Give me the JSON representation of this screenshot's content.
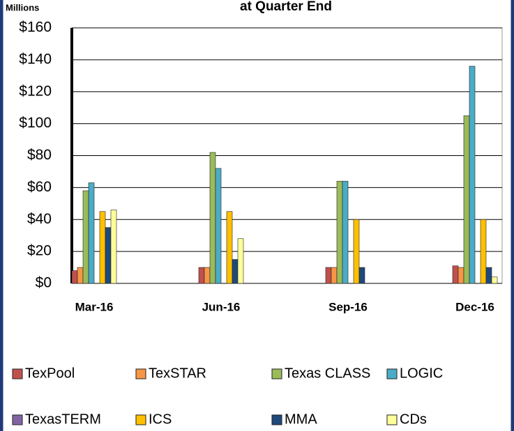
{
  "chart_data": {
    "type": "bar",
    "title": "at Quarter End",
    "units": "Millions",
    "categories": [
      "Mar-16",
      "Jun-16",
      "Sep-16",
      "Dec-16"
    ],
    "series": [
      {
        "name": "TexPool",
        "color": "#c0504d",
        "values": [
          8,
          10,
          10,
          11
        ]
      },
      {
        "name": "TexSTAR",
        "color": "#f79646",
        "values": [
          10,
          10,
          10,
          10
        ]
      },
      {
        "name": "Texas CLASS",
        "color": "#9bbb59",
        "values": [
          58,
          82,
          64,
          105
        ]
      },
      {
        "name": "LOGIC",
        "color": "#4bacc6",
        "values": [
          63,
          72,
          64,
          136
        ]
      },
      {
        "name": "TexasTERM",
        "color": "#8064a2",
        "values": [
          0,
          0,
          0,
          0
        ]
      },
      {
        "name": "ICS",
        "color": "#ffc000",
        "values": [
          45,
          45,
          40,
          40
        ]
      },
      {
        "name": "MMA",
        "color": "#1f497d",
        "values": [
          35,
          15,
          10,
          10
        ]
      },
      {
        "name": "CDs",
        "color": "#ffff99",
        "values": [
          46,
          28,
          0,
          4
        ]
      }
    ],
    "ylim": [
      0,
      160
    ],
    "yticks": [
      {
        "value": 0,
        "label": "$0"
      },
      {
        "value": 20,
        "label": "$20"
      },
      {
        "value": 40,
        "label": "$40"
      },
      {
        "value": 60,
        "label": "$60"
      },
      {
        "value": 80,
        "label": "$80"
      },
      {
        "value": 100,
        "label": "$100"
      },
      {
        "value": 120,
        "label": "$120"
      },
      {
        "value": 140,
        "label": "$140"
      },
      {
        "value": 160,
        "label": "$160"
      }
    ],
    "grid": true
  }
}
